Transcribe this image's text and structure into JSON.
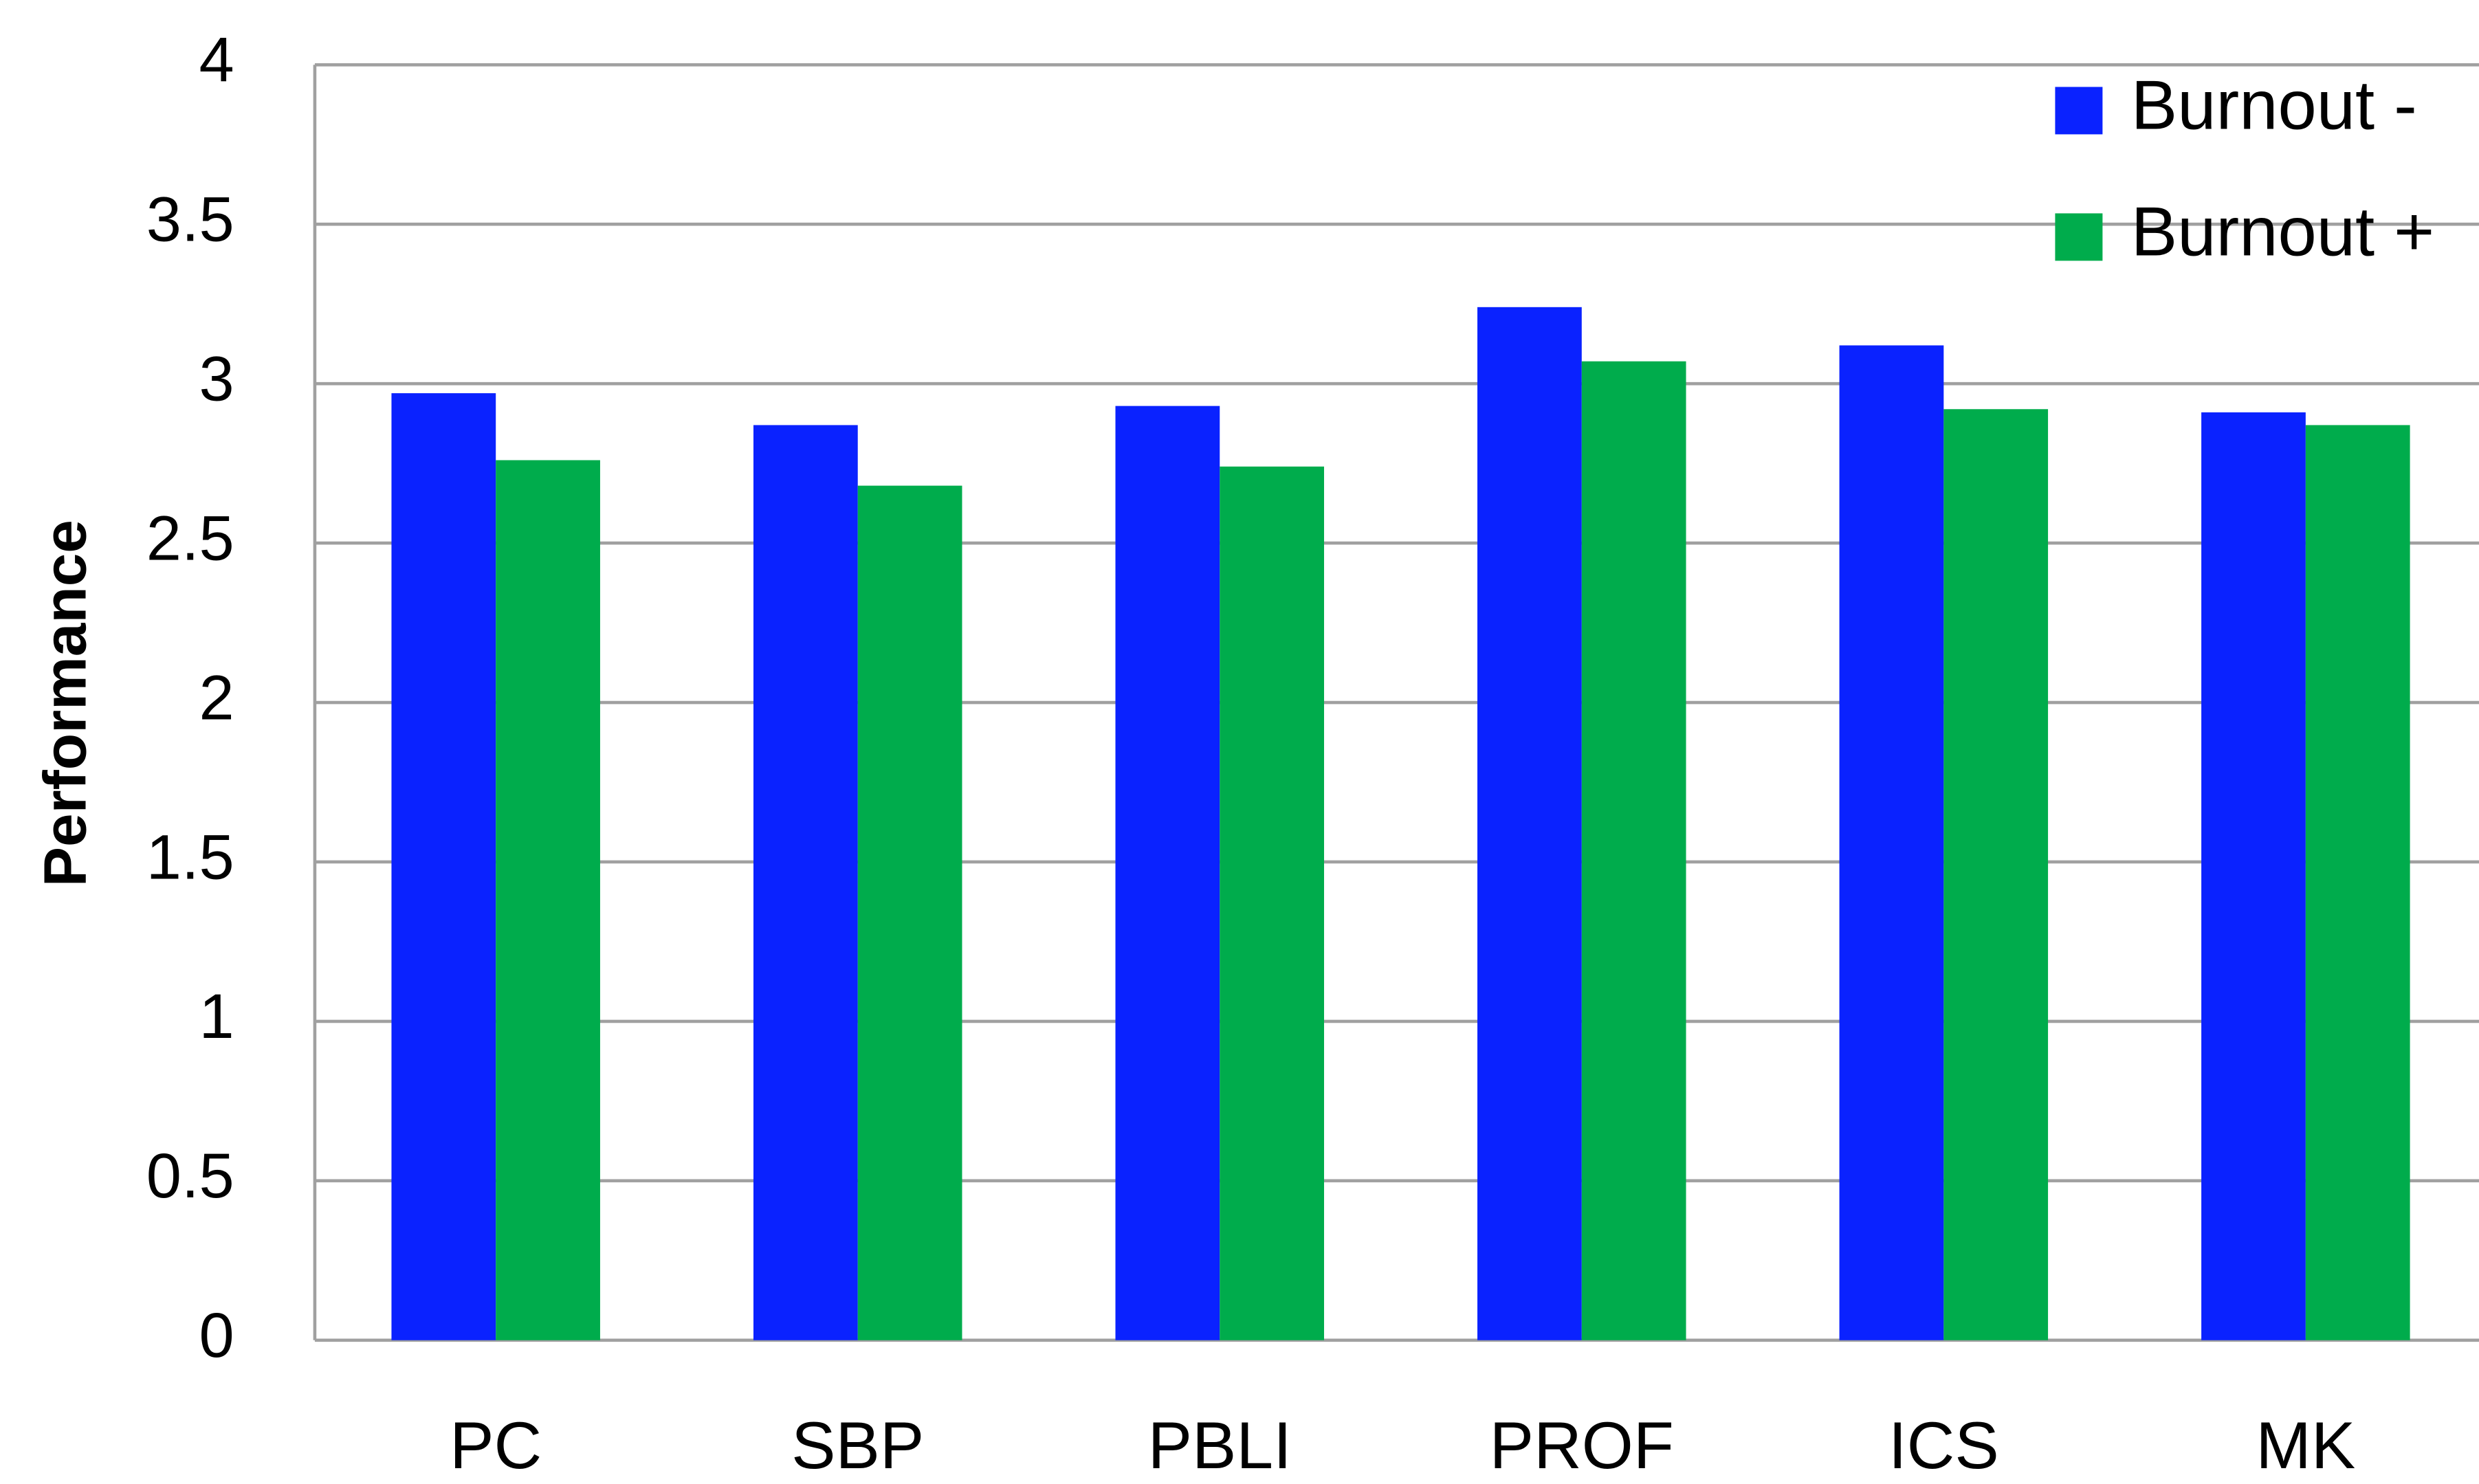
{
  "chart_data": {
    "type": "bar",
    "ylabel": "Performance",
    "categories": [
      "PC",
      "SBP",
      "PBLI",
      "PROF",
      "ICS",
      "MK"
    ],
    "series": [
      {
        "name": "Burnout -",
        "color": "#0a22ff",
        "values": [
          2.97,
          2.87,
          2.93,
          3.24,
          3.12,
          2.91
        ]
      },
      {
        "name": "Burnout +",
        "color": "#00ac4c",
        "values": [
          2.76,
          2.68,
          2.74,
          3.07,
          2.92,
          2.87
        ]
      }
    ],
    "ylim": [
      0,
      4
    ],
    "yticks": [
      0,
      0.5,
      1,
      1.5,
      2,
      2.5,
      3,
      3.5,
      4
    ],
    "grid": true,
    "legend": "top-right"
  }
}
